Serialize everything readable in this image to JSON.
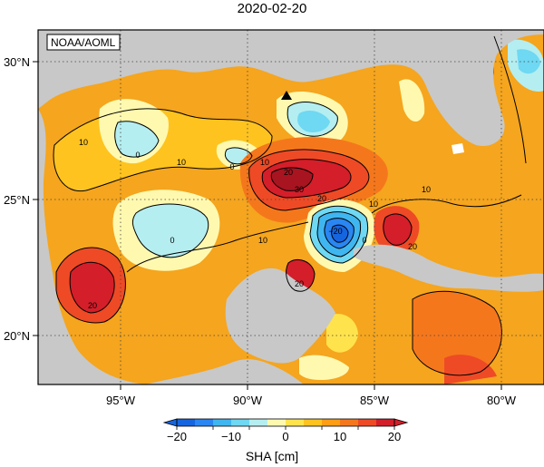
{
  "title": "2020-02-20",
  "credit": "NOAA/AOML",
  "axes": {
    "lon_ticks": [
      "95°W",
      "90°W",
      "85°W",
      "80°W"
    ],
    "lat_ticks": [
      "30°N",
      "25°N",
      "20°N"
    ]
  },
  "colorbar": {
    "ticks": [
      "−20",
      "−10",
      "0",
      "10",
      "20"
    ],
    "label": "SHA [cm]",
    "colors": [
      "#1565e0",
      "#2a86f2",
      "#3fb6f0",
      "#6fd8f2",
      "#b5eef0",
      "#fff9b0",
      "#ffe34d",
      "#ffc31f",
      "#ff9d14",
      "#f5771c",
      "#ee4a26",
      "#d41e2a"
    ]
  },
  "contour_labels": [
    "10",
    "0",
    "10",
    "0",
    "20",
    "10",
    "30",
    "20",
    "10",
    "10",
    "20",
    "10",
    "−20",
    "0",
    "0",
    "20",
    "20"
  ],
  "map_colors": {
    "land": "#c8c8c8",
    "ocean_base": "#f5a51e"
  }
}
